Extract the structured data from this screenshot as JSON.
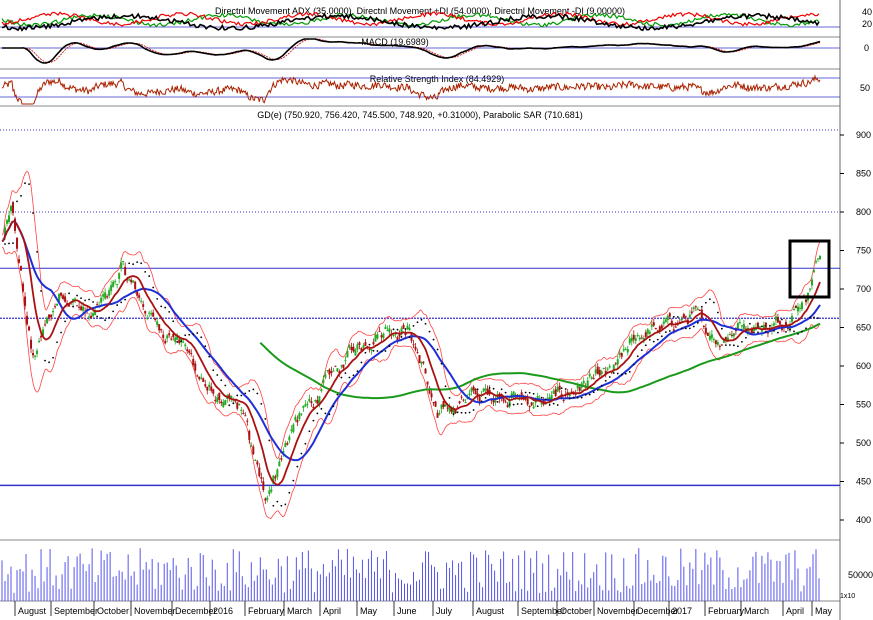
{
  "chart_data": [
    {
      "type": "line",
      "label": "Directnl Movement ADX (35.0000), Directnl Movement +DI (54.0000), Directnl Movement -DI (9.00000)",
      "series": [
        {
          "name": "ADX",
          "color": "#000000"
        },
        {
          "name": "+DI",
          "color": "#009900"
        },
        {
          "name": "-DI",
          "color": "#ee0000"
        }
      ],
      "y_ticks": [
        "40",
        "20"
      ],
      "levels": [
        20
      ]
    },
    {
      "type": "line",
      "label": "MACD (19.6989)",
      "series": [
        {
          "name": "MACD",
          "color": "#000000"
        },
        {
          "name": "Signal",
          "color": "#cc0000"
        }
      ],
      "y_ticks": [
        "0"
      ],
      "levels": [
        0
      ]
    },
    {
      "type": "line",
      "label": "Relative Strength Index (84.4929)",
      "series": [
        {
          "name": "RSI",
          "color": "#aa2200"
        }
      ],
      "y_ticks": [
        "50"
      ],
      "levels": [
        70,
        30
      ]
    },
    {
      "type": "candlestick",
      "label": "GD(e) (750.920, 756.420, 745.500, 748.920, +0.31000), Parabolic SAR (710.681)",
      "y_ticks": [
        "900",
        "850",
        "800",
        "750",
        "700",
        "650",
        "600",
        "550",
        "500",
        "450",
        "400"
      ],
      "ylim": [
        400,
        900
      ],
      "horizontal_lines": [
        800,
        727,
        662,
        445
      ],
      "key_points": [
        {
          "t": 0,
          "v": 760
        },
        {
          "t": 10,
          "v": 800
        },
        {
          "t": 30,
          "v": 610
        },
        {
          "t": 60,
          "v": 700
        },
        {
          "t": 90,
          "v": 660
        },
        {
          "t": 120,
          "v": 725
        },
        {
          "t": 150,
          "v": 660
        },
        {
          "t": 180,
          "v": 630
        },
        {
          "t": 210,
          "v": 560
        },
        {
          "t": 240,
          "v": 540
        },
        {
          "t": 262,
          "v": 428
        },
        {
          "t": 290,
          "v": 520
        },
        {
          "t": 320,
          "v": 570
        },
        {
          "t": 350,
          "v": 620
        },
        {
          "t": 380,
          "v": 650
        },
        {
          "t": 405,
          "v": 650
        },
        {
          "t": 420,
          "v": 600
        },
        {
          "t": 435,
          "v": 530
        },
        {
          "t": 460,
          "v": 560
        },
        {
          "t": 500,
          "v": 565
        },
        {
          "t": 540,
          "v": 550
        },
        {
          "t": 580,
          "v": 575
        },
        {
          "t": 610,
          "v": 590
        },
        {
          "t": 635,
          "v": 640
        },
        {
          "t": 660,
          "v": 650
        },
        {
          "t": 690,
          "v": 665
        },
        {
          "t": 715,
          "v": 635
        },
        {
          "t": 740,
          "v": 655
        },
        {
          "t": 770,
          "v": 650
        },
        {
          "t": 795,
          "v": 680
        },
        {
          "t": 805,
          "v": 700
        },
        {
          "t": 818,
          "v": 752
        }
      ]
    },
    {
      "type": "bar",
      "label": "Volume",
      "y_ticks": [
        "50000"
      ],
      "multiplier": "1x10"
    }
  ],
  "x_axis": {
    "labels": [
      "August",
      "September",
      "October",
      "November",
      "December",
      "2016",
      "February",
      "March",
      "April",
      "May",
      "June",
      "July",
      "August",
      "September",
      "October",
      "November",
      "December",
      "2017",
      "February",
      "March",
      "April",
      "May"
    ]
  }
}
